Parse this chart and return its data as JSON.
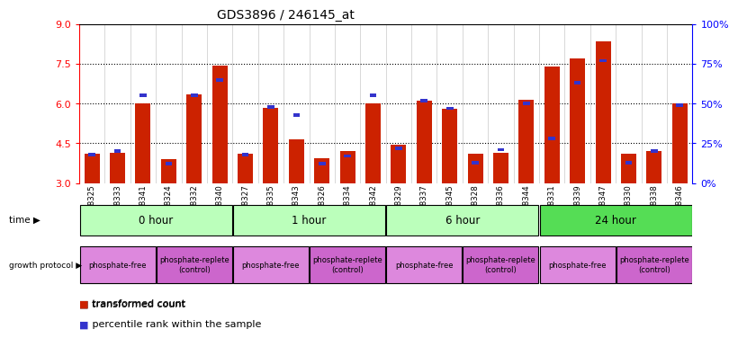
{
  "title": "GDS3896 / 246145_at",
  "samples": [
    "GSM618325",
    "GSM618333",
    "GSM618341",
    "GSM618324",
    "GSM618332",
    "GSM618340",
    "GSM618327",
    "GSM618335",
    "GSM618343",
    "GSM618326",
    "GSM618334",
    "GSM618342",
    "GSM618329",
    "GSM618337",
    "GSM618345",
    "GSM618328",
    "GSM618336",
    "GSM618344",
    "GSM618331",
    "GSM618339",
    "GSM618347",
    "GSM618330",
    "GSM618338",
    "GSM618346"
  ],
  "red_values": [
    4.1,
    4.15,
    6.0,
    3.9,
    6.35,
    7.45,
    4.1,
    5.85,
    4.65,
    3.95,
    4.2,
    6.0,
    4.45,
    6.1,
    5.8,
    4.1,
    4.15,
    6.15,
    7.4,
    7.7,
    8.35,
    4.1,
    4.2,
    6.0
  ],
  "blue_values_pct": [
    18,
    20,
    55,
    12,
    55,
    65,
    18,
    48,
    43,
    12,
    17,
    55,
    22,
    52,
    47,
    13,
    21,
    50,
    28,
    63,
    77,
    13,
    20,
    49
  ],
  "ylim_left": [
    3.0,
    9.0
  ],
  "ylim_right": [
    0,
    100
  ],
  "yticks_left": [
    3.0,
    4.5,
    6.0,
    7.5,
    9.0
  ],
  "yticks_right": [
    0,
    25,
    50,
    75,
    100
  ],
  "ytick_labels_right": [
    "0%",
    "25%",
    "50%",
    "75%",
    "100%"
  ],
  "hlines": [
    4.5,
    6.0,
    7.5
  ],
  "bar_color_red": "#cc2200",
  "bar_color_blue": "#3333cc",
  "bar_width": 0.6,
  "background_color": "#ffffff",
  "time_labels": [
    "0 hour",
    "1 hour",
    "6 hour",
    "24 hour"
  ],
  "time_colors": [
    "#bbffbb",
    "#bbffbb",
    "#bbffbb",
    "#55dd55"
  ],
  "prot_labels": [
    "phosphate-free",
    "phosphate-replete\n(control)",
    "phosphate-free",
    "phosphate-replete\n(control)",
    "phosphate-free",
    "phosphate-replete\n(control)",
    "phosphate-free",
    "phosphate-replete\n(control)"
  ],
  "prot_starts": [
    0,
    3,
    6,
    9,
    12,
    15,
    18,
    21
  ],
  "prot_ends": [
    3,
    6,
    9,
    12,
    15,
    18,
    21,
    24
  ],
  "prot_colors": [
    "#dd88dd",
    "#cc66cc",
    "#dd88dd",
    "#cc66cc",
    "#dd88dd",
    "#cc66cc",
    "#dd88dd",
    "#cc66cc"
  ]
}
